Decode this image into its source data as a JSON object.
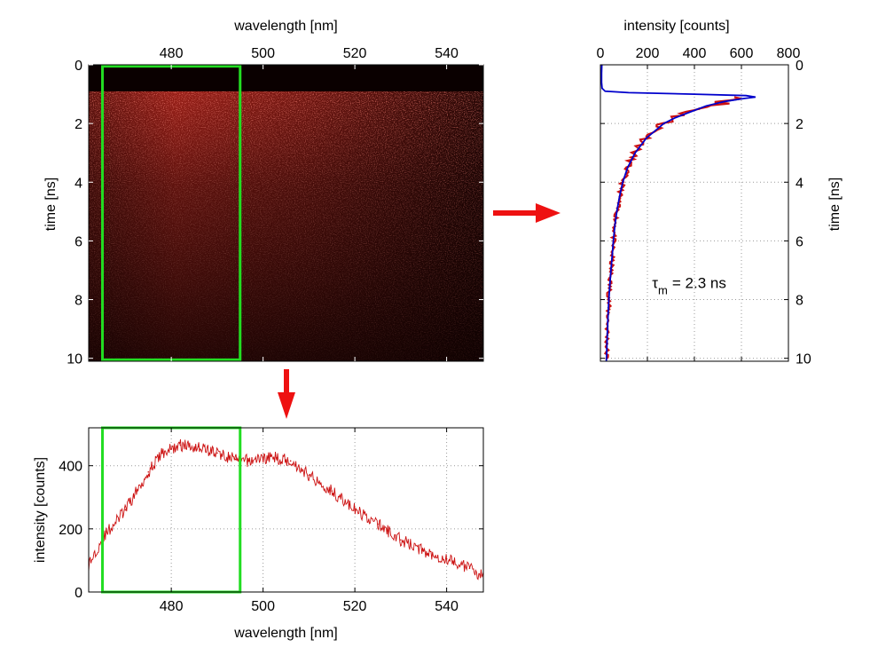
{
  "colors": {
    "heatmap_background": "#0a0000",
    "heatmap_glow": "#c8281e",
    "selection_box": "#22dd22",
    "arrow": "#ee1111",
    "data_line": "#cc1111",
    "fit_line": "#0000cc",
    "grid": "#9a9a9a"
  },
  "chart_data": [
    {
      "id": "streak",
      "type": "heatmap",
      "xlabel": "wavelength [nm]",
      "ylabel": "time [ns]",
      "xlim": [
        462,
        548
      ],
      "ylim": [
        0,
        10.1
      ],
      "y_inverted": true,
      "x_ticks": [
        480,
        500,
        520,
        540
      ],
      "y_ticks": [
        0,
        2,
        4,
        6,
        8,
        10
      ],
      "x_axis_position": "top",
      "grid": false,
      "onset_time_ns": 0.9,
      "peak_wavelength_nm": 482,
      "selection_box": {
        "x_range": [
          465,
          495
        ],
        "y_range": [
          0.05,
          10.05
        ]
      }
    },
    {
      "id": "decay",
      "type": "line",
      "xlabel": "intensity [counts]",
      "ylabel": "time [ns]",
      "xlim": [
        0,
        800
      ],
      "ylim": [
        0,
        10.1
      ],
      "y_inverted": true,
      "x_ticks": [
        0,
        200,
        400,
        600,
        800
      ],
      "y_ticks": [
        0,
        2,
        4,
        6,
        8,
        10
      ],
      "x_axis_position": "top",
      "y_axis_position": "right",
      "grid": true,
      "annotation": {
        "symbol": "τ",
        "subscript": "m",
        "text": "= 2.3 ns",
        "at": [
          220,
          7.6
        ]
      },
      "series": [
        {
          "style": "measured",
          "y": [
            1.1,
            1.3,
            1.5,
            1.7,
            2.0,
            2.5,
            3.0,
            3.5,
            4.0,
            4.5,
            5.0,
            5.5,
            6.0,
            6.5,
            7.0,
            7.5,
            8.0,
            8.5,
            9.0,
            9.5,
            10.0
          ],
          "x": [
            640,
            520,
            420,
            345,
            270,
            195,
            145,
            115,
            95,
            82,
            70,
            62,
            55,
            50,
            45,
            40,
            36,
            33,
            30,
            28,
            26
          ]
        },
        {
          "style": "fit",
          "y": [
            0.0,
            0.3,
            0.6,
            0.8,
            0.9,
            0.95,
            1.0,
            1.05,
            1.1,
            1.15,
            1.25,
            1.4,
            1.6,
            1.8,
            2.0,
            2.5,
            3.0,
            3.5,
            4.0,
            4.5,
            5.0,
            5.5,
            6.0,
            6.5,
            7.0,
            7.5,
            8.0,
            8.5,
            9.0,
            9.5,
            10.0,
            10.1
          ],
          "x": [
            6,
            5,
            5,
            7,
            20,
            120,
            400,
            620,
            660,
            610,
            530,
            450,
            385,
            320,
            270,
            195,
            148,
            116,
            95,
            81,
            70,
            61,
            55,
            50,
            45,
            40,
            36,
            33,
            30,
            28,
            26,
            25
          ]
        }
      ]
    },
    {
      "id": "spectrum",
      "type": "line",
      "xlabel": "wavelength [nm]",
      "ylabel": "intensity [counts]",
      "xlim": [
        462,
        548
      ],
      "ylim": [
        0,
        520
      ],
      "x_ticks": [
        480,
        500,
        520,
        540
      ],
      "y_ticks": [
        0,
        200,
        400
      ],
      "grid": true,
      "selection_box": {
        "x_range": [
          465,
          495
        ],
        "y_range": [
          0,
          520
        ]
      },
      "series": [
        {
          "style": "spectrum",
          "x": [
            462,
            465,
            470,
            475,
            478,
            482,
            486,
            490,
            494,
            497,
            500,
            503,
            506,
            510,
            515,
            520,
            525,
            530,
            535,
            540,
            545,
            548
          ],
          "y": [
            85,
            170,
            260,
            380,
            440,
            465,
            460,
            440,
            420,
            415,
            425,
            425,
            415,
            370,
            320,
            260,
            215,
            165,
            130,
            105,
            75,
            50
          ]
        }
      ]
    }
  ]
}
